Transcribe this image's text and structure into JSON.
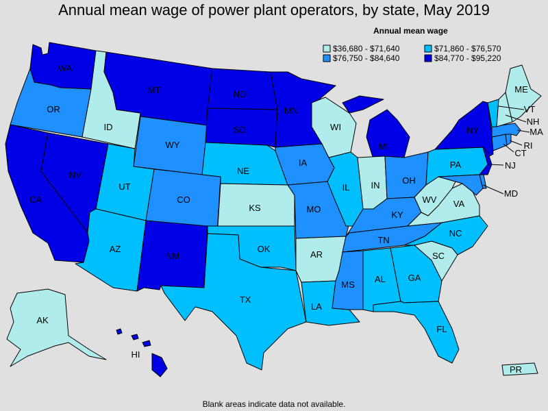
{
  "title": "Annual mean wage of power plant operators, by state, May 2019",
  "legend": {
    "title": "Annual mean wage",
    "items": [
      {
        "label": "$36,680 - $71,640",
        "color": "#b0ecec"
      },
      {
        "label": "$71,860 - $76,570",
        "color": "#00bfff"
      },
      {
        "label": "$76,750 - $84,640",
        "color": "#1e90ff"
      },
      {
        "label": "$84,770 - $95,220",
        "color": "#0000e6"
      }
    ]
  },
  "footnote": "Blank areas indicate data not available.",
  "states": {
    "WA": {
      "label": "WA",
      "tier": 3
    },
    "OR": {
      "label": "OR",
      "tier": 2
    },
    "CA": {
      "label": "CA",
      "tier": 3
    },
    "NV": {
      "label": "NV",
      "tier": 3
    },
    "ID": {
      "label": "ID",
      "tier": 0
    },
    "MT": {
      "label": "MT",
      "tier": 3
    },
    "WY": {
      "label": "WY",
      "tier": 2
    },
    "UT": {
      "label": "UT",
      "tier": 1
    },
    "AZ": {
      "label": "AZ",
      "tier": 1
    },
    "CO": {
      "label": "CO",
      "tier": 2
    },
    "NM": {
      "label": "NM",
      "tier": 3
    },
    "ND": {
      "label": "ND",
      "tier": 3
    },
    "SD": {
      "label": "SD",
      "tier": 3
    },
    "NE": {
      "label": "NE",
      "tier": 1
    },
    "KS": {
      "label": "KS",
      "tier": 0
    },
    "OK": {
      "label": "OK",
      "tier": 1
    },
    "TX": {
      "label": "TX",
      "tier": 1
    },
    "MN": {
      "label": "MN",
      "tier": 3
    },
    "IA": {
      "label": "IA",
      "tier": 2
    },
    "MO": {
      "label": "MO",
      "tier": 2
    },
    "AR": {
      "label": "AR",
      "tier": 0
    },
    "LA": {
      "label": "LA",
      "tier": 1
    },
    "WI": {
      "label": "WI",
      "tier": 0
    },
    "IL": {
      "label": "IL",
      "tier": 1
    },
    "MI": {
      "label": "MI",
      "tier": 3
    },
    "IN": {
      "label": "IN",
      "tier": 0
    },
    "OH": {
      "label": "OH",
      "tier": 2
    },
    "KY": {
      "label": "KY",
      "tier": 2
    },
    "TN": {
      "label": "TN",
      "tier": 2
    },
    "MS": {
      "label": "MS",
      "tier": 2
    },
    "AL": {
      "label": "AL",
      "tier": 1
    },
    "GA": {
      "label": "GA",
      "tier": 1
    },
    "FL": {
      "label": "FL",
      "tier": 1
    },
    "SC": {
      "label": "SC",
      "tier": 0
    },
    "NC": {
      "label": "NC",
      "tier": 1
    },
    "VA": {
      "label": "VA",
      "tier": 0
    },
    "WV": {
      "label": "WV",
      "tier": 0
    },
    "PA": {
      "label": "PA",
      "tier": 1
    },
    "NY": {
      "label": "NY",
      "tier": 3
    },
    "NJ": {
      "label": "NJ",
      "tier": 3
    },
    "MD": {
      "label": "MD",
      "tier": 2
    },
    "DE": {
      "label": "",
      "tier": 2
    },
    "CT": {
      "label": "CT",
      "tier": 2
    },
    "RI": {
      "label": "RI",
      "tier": 2
    },
    "MA": {
      "label": "MA",
      "tier": 2
    },
    "VT": {
      "label": "VT",
      "tier": 1
    },
    "NH": {
      "label": "NH",
      "tier": 0
    },
    "ME": {
      "label": "ME",
      "tier": 0
    },
    "AK": {
      "label": "AK",
      "tier": 0
    },
    "HI": {
      "label": "HI",
      "tier": 3
    },
    "PR": {
      "label": "PR",
      "tier": 0
    }
  }
}
